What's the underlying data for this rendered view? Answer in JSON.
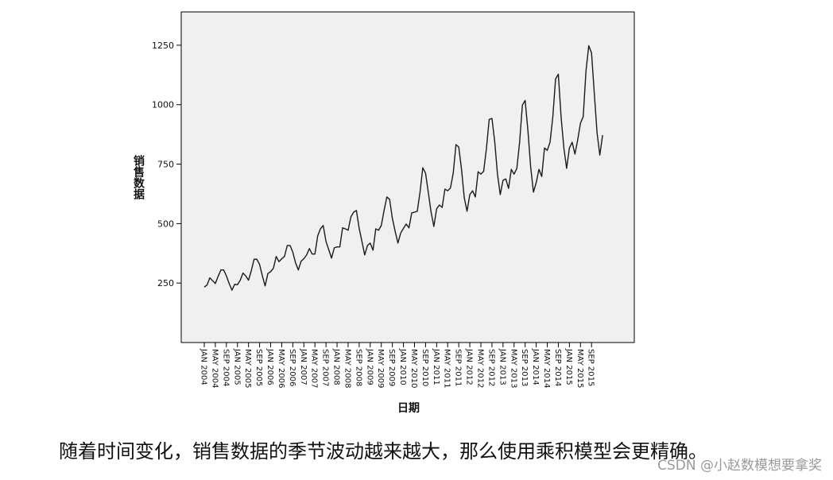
{
  "chart_data": {
    "type": "line",
    "xlabel": "日期",
    "ylabel": "销售数据",
    "ylim": [
      0,
      1390
    ],
    "yticks": [
      250,
      500,
      750,
      1000,
      1250
    ],
    "xticks": [
      "JAN 2004",
      "MAY 2004",
      "SEP 2004",
      "JAN 2005",
      "MAY 2005",
      "SEP 2005",
      "JAN 2006",
      "MAY 2006",
      "SEP 2006",
      "JAN 2007",
      "MAY 2007",
      "SEP 2007",
      "JAN 2008",
      "MAY 2008",
      "SEP 2008",
      "JAN 2009",
      "MAY 2009",
      "SEP 2009",
      "JAN 2010",
      "MAY 2010",
      "SEP 2010",
      "JAN 2011",
      "MAY 2011",
      "SEP 2011",
      "JAN 2012",
      "MAY 2012",
      "SEP 2012",
      "JAN 2013",
      "MAY 2013",
      "SEP 2013",
      "JAN 2014",
      "MAY 2014",
      "SEP 2014",
      "JAN 2015",
      "MAY 2015",
      "SEP 2015"
    ],
    "x_start": "JAN 2004",
    "x_step": "1 month",
    "background": "#f0f0f0",
    "line_color": "#1a1a1a",
    "series": [
      {
        "values": [
          233,
          242,
          272,
          260,
          248,
          278,
          305,
          305,
          280,
          248,
          220,
          245,
          243,
          262,
          292,
          280,
          262,
          302,
          350,
          350,
          328,
          280,
          238,
          290,
          298,
          312,
          362,
          340,
          352,
          362,
          408,
          408,
          380,
          335,
          305,
          342,
          352,
          368,
          395,
          372,
          372,
          448,
          478,
          492,
          425,
          390,
          355,
          398,
          402,
          402,
          482,
          478,
          472,
          528,
          548,
          555,
          480,
          425,
          368,
          408,
          418,
          388,
          478,
          472,
          492,
          555,
          612,
          602,
          522,
          468,
          418,
          460,
          480,
          498,
          482,
          545,
          548,
          552,
          632,
          735,
          712,
          630,
          548,
          488,
          562,
          578,
          568,
          645,
          638,
          650,
          712,
          832,
          822,
          728,
          608,
          552,
          622,
          638,
          612,
          718,
          708,
          720,
          815,
          938,
          942,
          845,
          708,
          622,
          682,
          688,
          648,
          728,
          708,
          732,
          842,
          998,
          1018,
          892,
          738,
          632,
          672,
          728,
          698,
          818,
          808,
          842,
          948,
          1108,
          1128,
          948,
          818,
          732,
          818,
          842,
          792,
          852,
          922,
          950,
          1142,
          1248,
          1218,
          1048,
          882,
          788,
          872
        ]
      }
    ]
  },
  "caption": "随着时间变化，销售数据的季节波动越来越大，那么使用乘积模型会更精确。",
  "watermark": "CSDN @小赵数模想要拿奖"
}
